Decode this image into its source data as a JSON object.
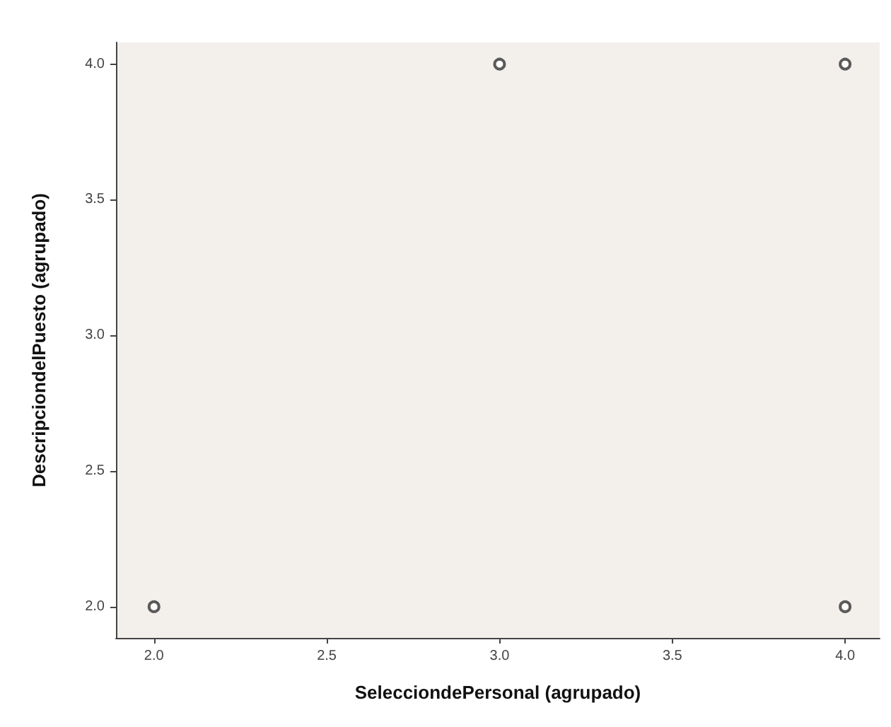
{
  "chart_data": {
    "type": "scatter",
    "xlabel": "SelecciondePersonal (agrupado)",
    "ylabel": "DescripciondelPuesto (agrupado)",
    "x": [
      2,
      3,
      4,
      4
    ],
    "values": [
      2,
      4,
      4,
      2
    ],
    "color": "#333333",
    "marker": "circle",
    "grid": false,
    "xlim": [
      1.89,
      4.1
    ],
    "xticks": [
      {
        "value": 2,
        "label": "2.0"
      },
      {
        "value": 2.5,
        "label": "2.5"
      },
      {
        "value": 3,
        "label": "3.0"
      },
      {
        "value": 3.5,
        "label": "3.5"
      },
      {
        "value": 4,
        "label": "4.0"
      }
    ],
    "ylim": [
      1.885,
      4.08
    ],
    "yticks": [
      {
        "value": 2,
        "label": "2.0"
      },
      {
        "value": 2.5,
        "label": "2.5"
      },
      {
        "value": 3,
        "label": "3.0"
      },
      {
        "value": 3.5,
        "label": "3.5"
      },
      {
        "value": 4,
        "label": "4.0"
      }
    ]
  }
}
